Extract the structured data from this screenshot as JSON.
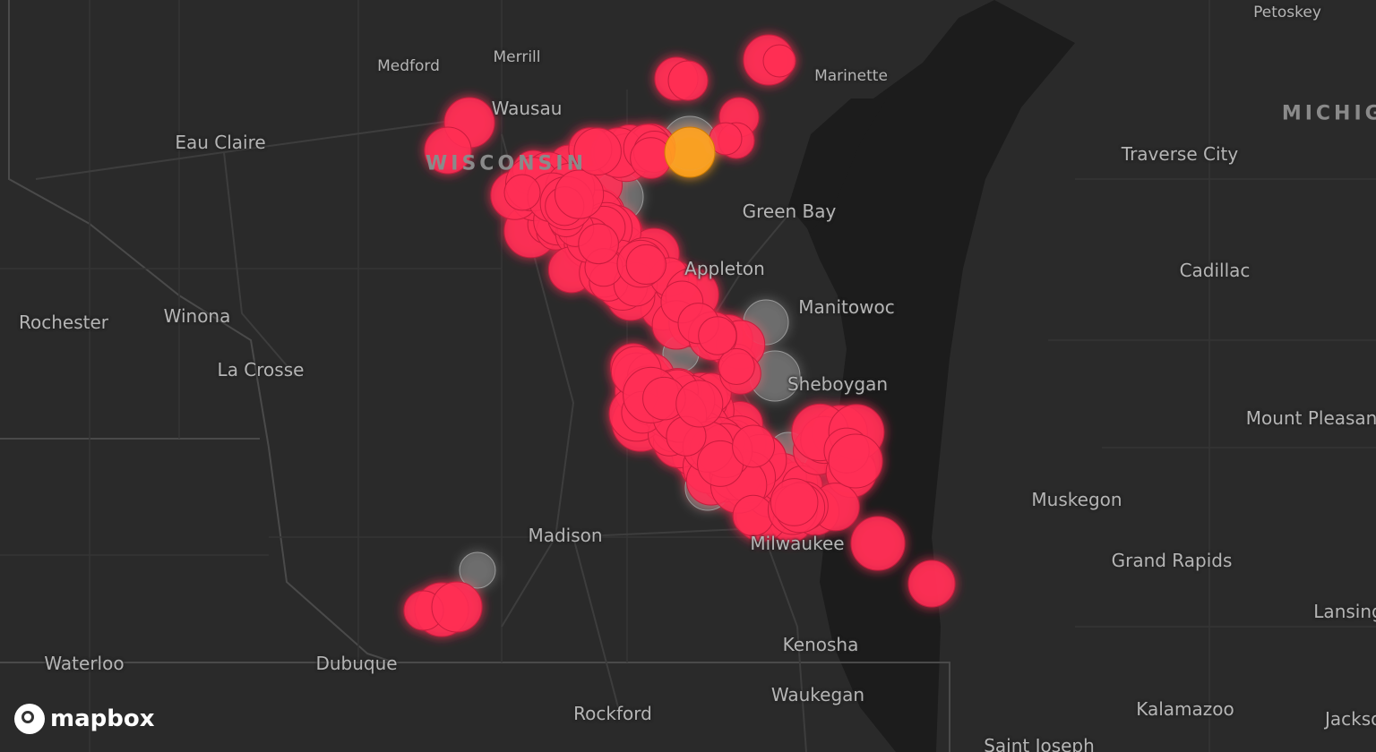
{
  "map": {
    "cities": [
      "Petoskey",
      "Medford",
      "Merrill",
      "Marinette",
      "Wausau",
      "Eau Claire",
      "Traverse City",
      "Green Bay",
      "Appleton",
      "Cadillac",
      "Rochester",
      "Winona",
      "Manitowoc",
      "La Crosse",
      "Sheboygan",
      "Mount Pleasant",
      "Muskegon",
      "Madison",
      "Milwaukee",
      "Grand Rapids",
      "Lansing",
      "Kenosha",
      "Waterloo",
      "Dubuque",
      "Waukegan",
      "Rockford",
      "Kalamazoo",
      "Jackson",
      "Saint Joseph"
    ],
    "states": [
      "WISCONSIN",
      "MICHIGAN"
    ]
  },
  "attribution": {
    "logo_text": "mapbox"
  }
}
